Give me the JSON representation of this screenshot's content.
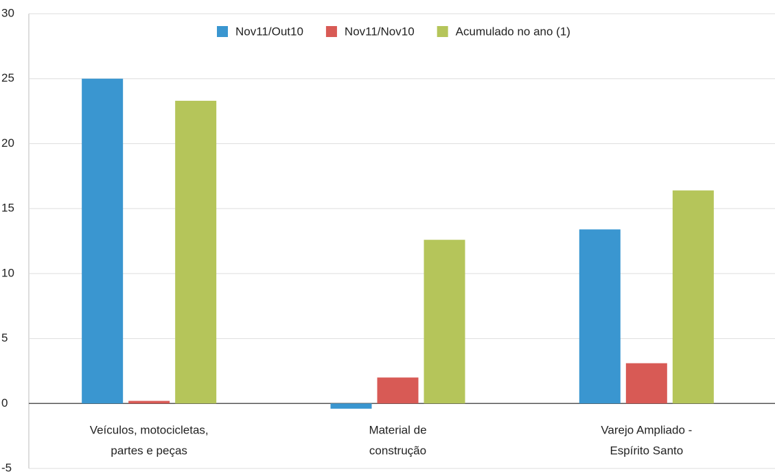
{
  "chart_data": {
    "type": "bar",
    "categories": [
      [
        "Veículos, motocicletas,",
        "partes e peças"
      ],
      [
        "Material de",
        "construção"
      ],
      [
        "Varejo Ampliado -",
        "Espírito Santo"
      ]
    ],
    "series": [
      {
        "name": "Nov11/Out10",
        "color": "#3a96d0",
        "values": [
          25.0,
          -0.4,
          13.4
        ]
      },
      {
        "name": "Nov11/Nov10",
        "color": "#d85a55",
        "values": [
          0.2,
          2.0,
          3.1
        ]
      },
      {
        "name": "Acumulado no ano (1)",
        "color": "#b5c55a",
        "values": [
          23.3,
          12.6,
          16.4
        ]
      }
    ],
    "ylim": [
      -5,
      30
    ],
    "yticks": [
      -5,
      0,
      5,
      10,
      15,
      20,
      25,
      30
    ],
    "grid": true,
    "legend": "top"
  }
}
